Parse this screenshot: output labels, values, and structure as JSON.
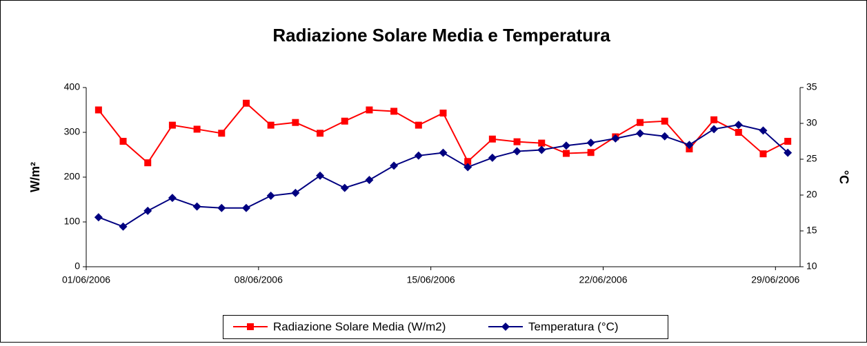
{
  "chart_data": {
    "type": "line",
    "title": "Radiazione Solare Media e Temperatura",
    "y_label": "W/m²",
    "y2_label": "°C",
    "categories": [
      "01/06/2006",
      null,
      null,
      null,
      null,
      null,
      null,
      "08/06/2006",
      null,
      null,
      null,
      null,
      null,
      null,
      "15/06/2006",
      null,
      null,
      null,
      null,
      null,
      null,
      "22/06/2006",
      null,
      null,
      null,
      null,
      null,
      null,
      "29/06/2006"
    ],
    "series": [
      {
        "name": "Radiazione Solare Media (W/m2)",
        "color": "#ff0000",
        "marker": "square",
        "values": [
          350,
          280,
          232,
          316,
          307,
          298,
          365,
          316,
          322,
          298,
          325,
          350,
          347,
          316,
          343,
          235,
          285,
          279,
          276,
          253,
          255,
          290,
          322,
          325,
          263,
          328,
          300,
          252,
          280
        ]
      },
      {
        "name": "Temperatura (°C)",
        "color": "#000080",
        "marker": "diamond",
        "axis": "y2",
        "values": [
          16.9,
          15.6,
          17.8,
          19.6,
          18.4,
          18.2,
          18.2,
          19.9,
          20.3,
          22.7,
          21.0,
          22.1,
          24.1,
          25.5,
          25.9,
          23.9,
          25.2,
          26.1,
          26.3,
          26.9,
          27.3,
          27.9,
          28.6,
          28.2,
          27.0,
          29.2,
          29.8,
          29.0,
          25.9
        ]
      }
    ],
    "ylim": [
      0,
      400
    ],
    "yticks": [
      0,
      100,
      200,
      300,
      400
    ],
    "y2lim": [
      10,
      35
    ],
    "y2ticks": [
      10,
      15,
      20,
      25,
      30,
      35
    ],
    "legend": "bottom"
  }
}
